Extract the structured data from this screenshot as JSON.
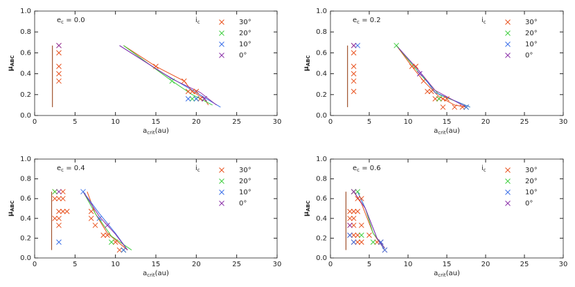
{
  "chart_data": [
    {
      "type": "scatter",
      "annotation": [
        "e",
        "c",
        " = 0.0"
      ],
      "x_label": [
        "a",
        "crit",
        "(au)"
      ],
      "y_label": [
        "μ",
        "ABC"
      ],
      "legend_title": [
        "i",
        "c"
      ],
      "xlim": [
        0,
        30
      ],
      "xticks": [
        0,
        5,
        10,
        15,
        20,
        25,
        30
      ],
      "ylim": [
        0,
        1
      ],
      "yticks": [
        {
          "value": 0,
          "label": "0.0"
        },
        0.2,
        0.4,
        0.6,
        0.8,
        {
          "value": 1,
          "label": "1.0"
        }
      ],
      "limit_line": {
        "color": "#a0522d",
        "x": [
          2.2,
          2.2
        ],
        "y": [
          0.08,
          0.67
        ]
      },
      "series": [
        {
          "name": "30°",
          "color": "#e8501c",
          "x": [
            3,
            3,
            3,
            3,
            3,
            15,
            18.5,
            19,
            19.5,
            20,
            20.5,
            21
          ],
          "y": [
            0.67,
            0.6,
            0.47,
            0.4,
            0.33,
            0.47,
            0.33,
            0.23,
            0.23,
            0.23,
            0.16,
            0.16
          ],
          "line_x": [
            11,
            15,
            18.5,
            19.5,
            21,
            21.5
          ],
          "line_y": [
            0.67,
            0.47,
            0.33,
            0.23,
            0.16,
            0.1
          ]
        },
        {
          "name": "20°",
          "color": "#3fcf3f",
          "x": [
            17,
            19.5,
            20
          ],
          "y": [
            0.33,
            0.16,
            0.16
          ],
          "line_x": [
            11,
            17,
            19.5,
            22
          ],
          "line_y": [
            0.67,
            0.33,
            0.2,
            0.1
          ]
        },
        {
          "name": "10°",
          "color": "#3a6fe8",
          "x": [
            19,
            20,
            21
          ],
          "y": [
            0.16,
            0.16,
            0.16
          ],
          "line_x": [
            10.5,
            16,
            20,
            23
          ],
          "line_y": [
            0.67,
            0.4,
            0.22,
            0.08
          ]
        },
        {
          "name": "0°",
          "color": "#8a2fa8",
          "x": [
            3,
            21
          ],
          "y": [
            0.67,
            0.16
          ],
          "line_x": [
            10.5,
            17,
            20.5,
            22.5
          ],
          "line_y": [
            0.67,
            0.35,
            0.22,
            0.1
          ]
        }
      ]
    },
    {
      "type": "scatter",
      "annotation": [
        "e",
        "c",
        " = 0.2"
      ],
      "x_label": [
        "a",
        "crit",
        "(au)"
      ],
      "y_label": [
        "μ",
        "ABC"
      ],
      "legend_title": [
        "i",
        "c"
      ],
      "xlim": [
        0,
        30
      ],
      "xticks": [
        0,
        5,
        10,
        15,
        20,
        25,
        30
      ],
      "ylim": [
        0,
        1
      ],
      "yticks": [
        {
          "value": 0,
          "label": "0.0"
        },
        0.2,
        0.4,
        0.6,
        0.8,
        {
          "value": 1,
          "label": "1.0"
        }
      ],
      "limit_line": {
        "color": "#a0522d",
        "x": [
          2.2,
          2.2
        ],
        "y": [
          0.08,
          0.67
        ]
      },
      "series": [
        {
          "name": "30°",
          "color": "#e8501c",
          "x": [
            3,
            3,
            3,
            3,
            3,
            3,
            10.5,
            11,
            12,
            12.5,
            13,
            13.5,
            14,
            14.5,
            15,
            14.5,
            16,
            17,
            17.5
          ],
          "y": [
            0.67,
            0.6,
            0.47,
            0.4,
            0.33,
            0.23,
            0.47,
            0.47,
            0.33,
            0.23,
            0.23,
            0.16,
            0.16,
            0.16,
            0.16,
            0.08,
            0.08,
            0.08,
            0.08
          ],
          "line_x": [
            8.5,
            10.5,
            12,
            14,
            16,
            17.5
          ],
          "line_y": [
            0.67,
            0.47,
            0.33,
            0.18,
            0.1,
            0.08
          ]
        },
        {
          "name": "20°",
          "color": "#3fcf3f",
          "x": [
            8.5,
            14,
            17.5
          ],
          "y": [
            0.67,
            0.16,
            0.08
          ],
          "line_x": [
            8.5,
            11.5,
            14,
            18
          ],
          "line_y": [
            0.67,
            0.4,
            0.2,
            0.08
          ]
        },
        {
          "name": "10°",
          "color": "#3a6fe8",
          "x": [
            3.5,
            11.5,
            17.5
          ],
          "y": [
            0.67,
            0.4,
            0.08
          ],
          "line_x": [
            8.5,
            11.5,
            13.5,
            18
          ],
          "line_y": [
            0.67,
            0.42,
            0.22,
            0.08
          ]
        },
        {
          "name": "0°",
          "color": "#8a2fa8",
          "x": [
            3,
            11.5
          ],
          "y": [
            0.67,
            0.4
          ],
          "line_x": [
            8.5,
            11.5,
            13.5,
            17.5
          ],
          "line_y": [
            0.67,
            0.42,
            0.24,
            0.08
          ]
        }
      ]
    },
    {
      "type": "scatter",
      "annotation": [
        "e",
        "c",
        " = 0.4"
      ],
      "x_label": [
        "a",
        "crit",
        "(au)"
      ],
      "y_label": [
        "μ",
        "ABC"
      ],
      "legend_title": [
        "i",
        "c"
      ],
      "xlim": [
        0,
        30
      ],
      "xticks": [
        0,
        5,
        10,
        15,
        20,
        25,
        30
      ],
      "ylim": [
        0,
        1
      ],
      "yticks": [
        {
          "value": 0,
          "label": "0.0"
        },
        0.2,
        0.4,
        0.6,
        0.8,
        {
          "value": 1,
          "label": "1.0"
        }
      ],
      "limit_line": {
        "color": "#a0522d",
        "x": [
          2.1,
          2.1
        ],
        "y": [
          0.08,
          0.67
        ]
      },
      "series": [
        {
          "name": "30°",
          "color": "#e8501c",
          "x": [
            2.5,
            3,
            3.5,
            2.5,
            3.5,
            3,
            3.5,
            4,
            2.5,
            3,
            3,
            7,
            7,
            7.5,
            8.5,
            9,
            10,
            10.5,
            11
          ],
          "y": [
            0.67,
            0.6,
            0.67,
            0.6,
            0.6,
            0.47,
            0.47,
            0.47,
            0.4,
            0.4,
            0.33,
            0.47,
            0.4,
            0.33,
            0.23,
            0.23,
            0.16,
            0.08,
            0.08
          ],
          "line_x": [
            6.5,
            7.5,
            9,
            11.5
          ],
          "line_y": [
            0.67,
            0.45,
            0.25,
            0.08
          ]
        },
        {
          "name": "20°",
          "color": "#3fcf3f",
          "x": [
            2.5,
            9.5,
            11
          ],
          "y": [
            0.67,
            0.16,
            0.08
          ],
          "line_x": [
            6,
            7.5,
            9.5,
            12
          ],
          "line_y": [
            0.67,
            0.45,
            0.22,
            0.08
          ]
        },
        {
          "name": "10°",
          "color": "#3a6fe8",
          "x": [
            6,
            3,
            8,
            11
          ],
          "y": [
            0.67,
            0.16,
            0.4,
            0.08
          ],
          "line_x": [
            6,
            8,
            10,
            11.5
          ],
          "line_y": [
            0.67,
            0.45,
            0.25,
            0.08
          ]
        },
        {
          "name": "0°",
          "color": "#8a2fa8",
          "x": [
            3,
            9
          ],
          "y": [
            0.67,
            0.33
          ],
          "line_x": [
            6,
            8,
            10,
            11.5
          ],
          "line_y": [
            0.67,
            0.42,
            0.24,
            0.08
          ]
        }
      ]
    },
    {
      "type": "scatter",
      "annotation": [
        "e",
        "c",
        " = 0.6"
      ],
      "x_label": [
        "a",
        "crit",
        "(au)"
      ],
      "y_label": [
        "μ",
        "ABC"
      ],
      "legend_title": [
        "i",
        "c"
      ],
      "xlim": [
        0,
        30
      ],
      "xticks": [
        0,
        5,
        10,
        15,
        20,
        25,
        30
      ],
      "ylim": [
        0,
        1
      ],
      "yticks": [
        {
          "value": 0,
          "label": "0.0"
        },
        0.2,
        0.4,
        0.6,
        0.8,
        {
          "value": 1,
          "label": "1.0"
        }
      ],
      "limit_line": {
        "color": "#a0522d",
        "x": [
          2,
          2
        ],
        "y": [
          0.08,
          0.67
        ]
      },
      "series": [
        {
          "name": "30°",
          "color": "#e8501c",
          "x": [
            2.5,
            3,
            3.5,
            2.5,
            3,
            2.5,
            3,
            4,
            2.5,
            3,
            3.5,
            3,
            3.5,
            4,
            3,
            3.5,
            4,
            5,
            6,
            6.5,
            7
          ],
          "y": [
            0.47,
            0.47,
            0.47,
            0.4,
            0.4,
            0.33,
            0.33,
            0.33,
            0.23,
            0.23,
            0.23,
            0.16,
            0.16,
            0.16,
            0.67,
            0.6,
            0.6,
            0.23,
            0.16,
            0.16,
            0.08
          ],
          "line_x": [
            3,
            4,
            5.5,
            7
          ],
          "line_y": [
            0.67,
            0.55,
            0.25,
            0.08
          ]
        },
        {
          "name": "20°",
          "color": "#3fcf3f",
          "x": [
            3,
            3.5,
            5.5,
            4
          ],
          "y": [
            0.67,
            0.67,
            0.16,
            0.23
          ],
          "line_x": [
            3.5,
            4.5,
            5.5,
            7
          ],
          "line_y": [
            0.67,
            0.5,
            0.25,
            0.1
          ]
        },
        {
          "name": "10°",
          "color": "#3a6fe8",
          "x": [
            2.5,
            3,
            6.5,
            7
          ],
          "y": [
            0.23,
            0.16,
            0.16,
            0.08
          ],
          "line_x": [
            3.5,
            4.5,
            6,
            7
          ],
          "line_y": [
            0.67,
            0.5,
            0.2,
            0.08
          ]
        },
        {
          "name": "0°",
          "color": "#8a2fa8",
          "x": [
            3,
            2.5
          ],
          "y": [
            0.67,
            0.33
          ],
          "line_x": [
            3,
            4.5,
            6,
            7
          ],
          "line_y": [
            0.67,
            0.5,
            0.2,
            0.1
          ]
        }
      ]
    }
  ]
}
